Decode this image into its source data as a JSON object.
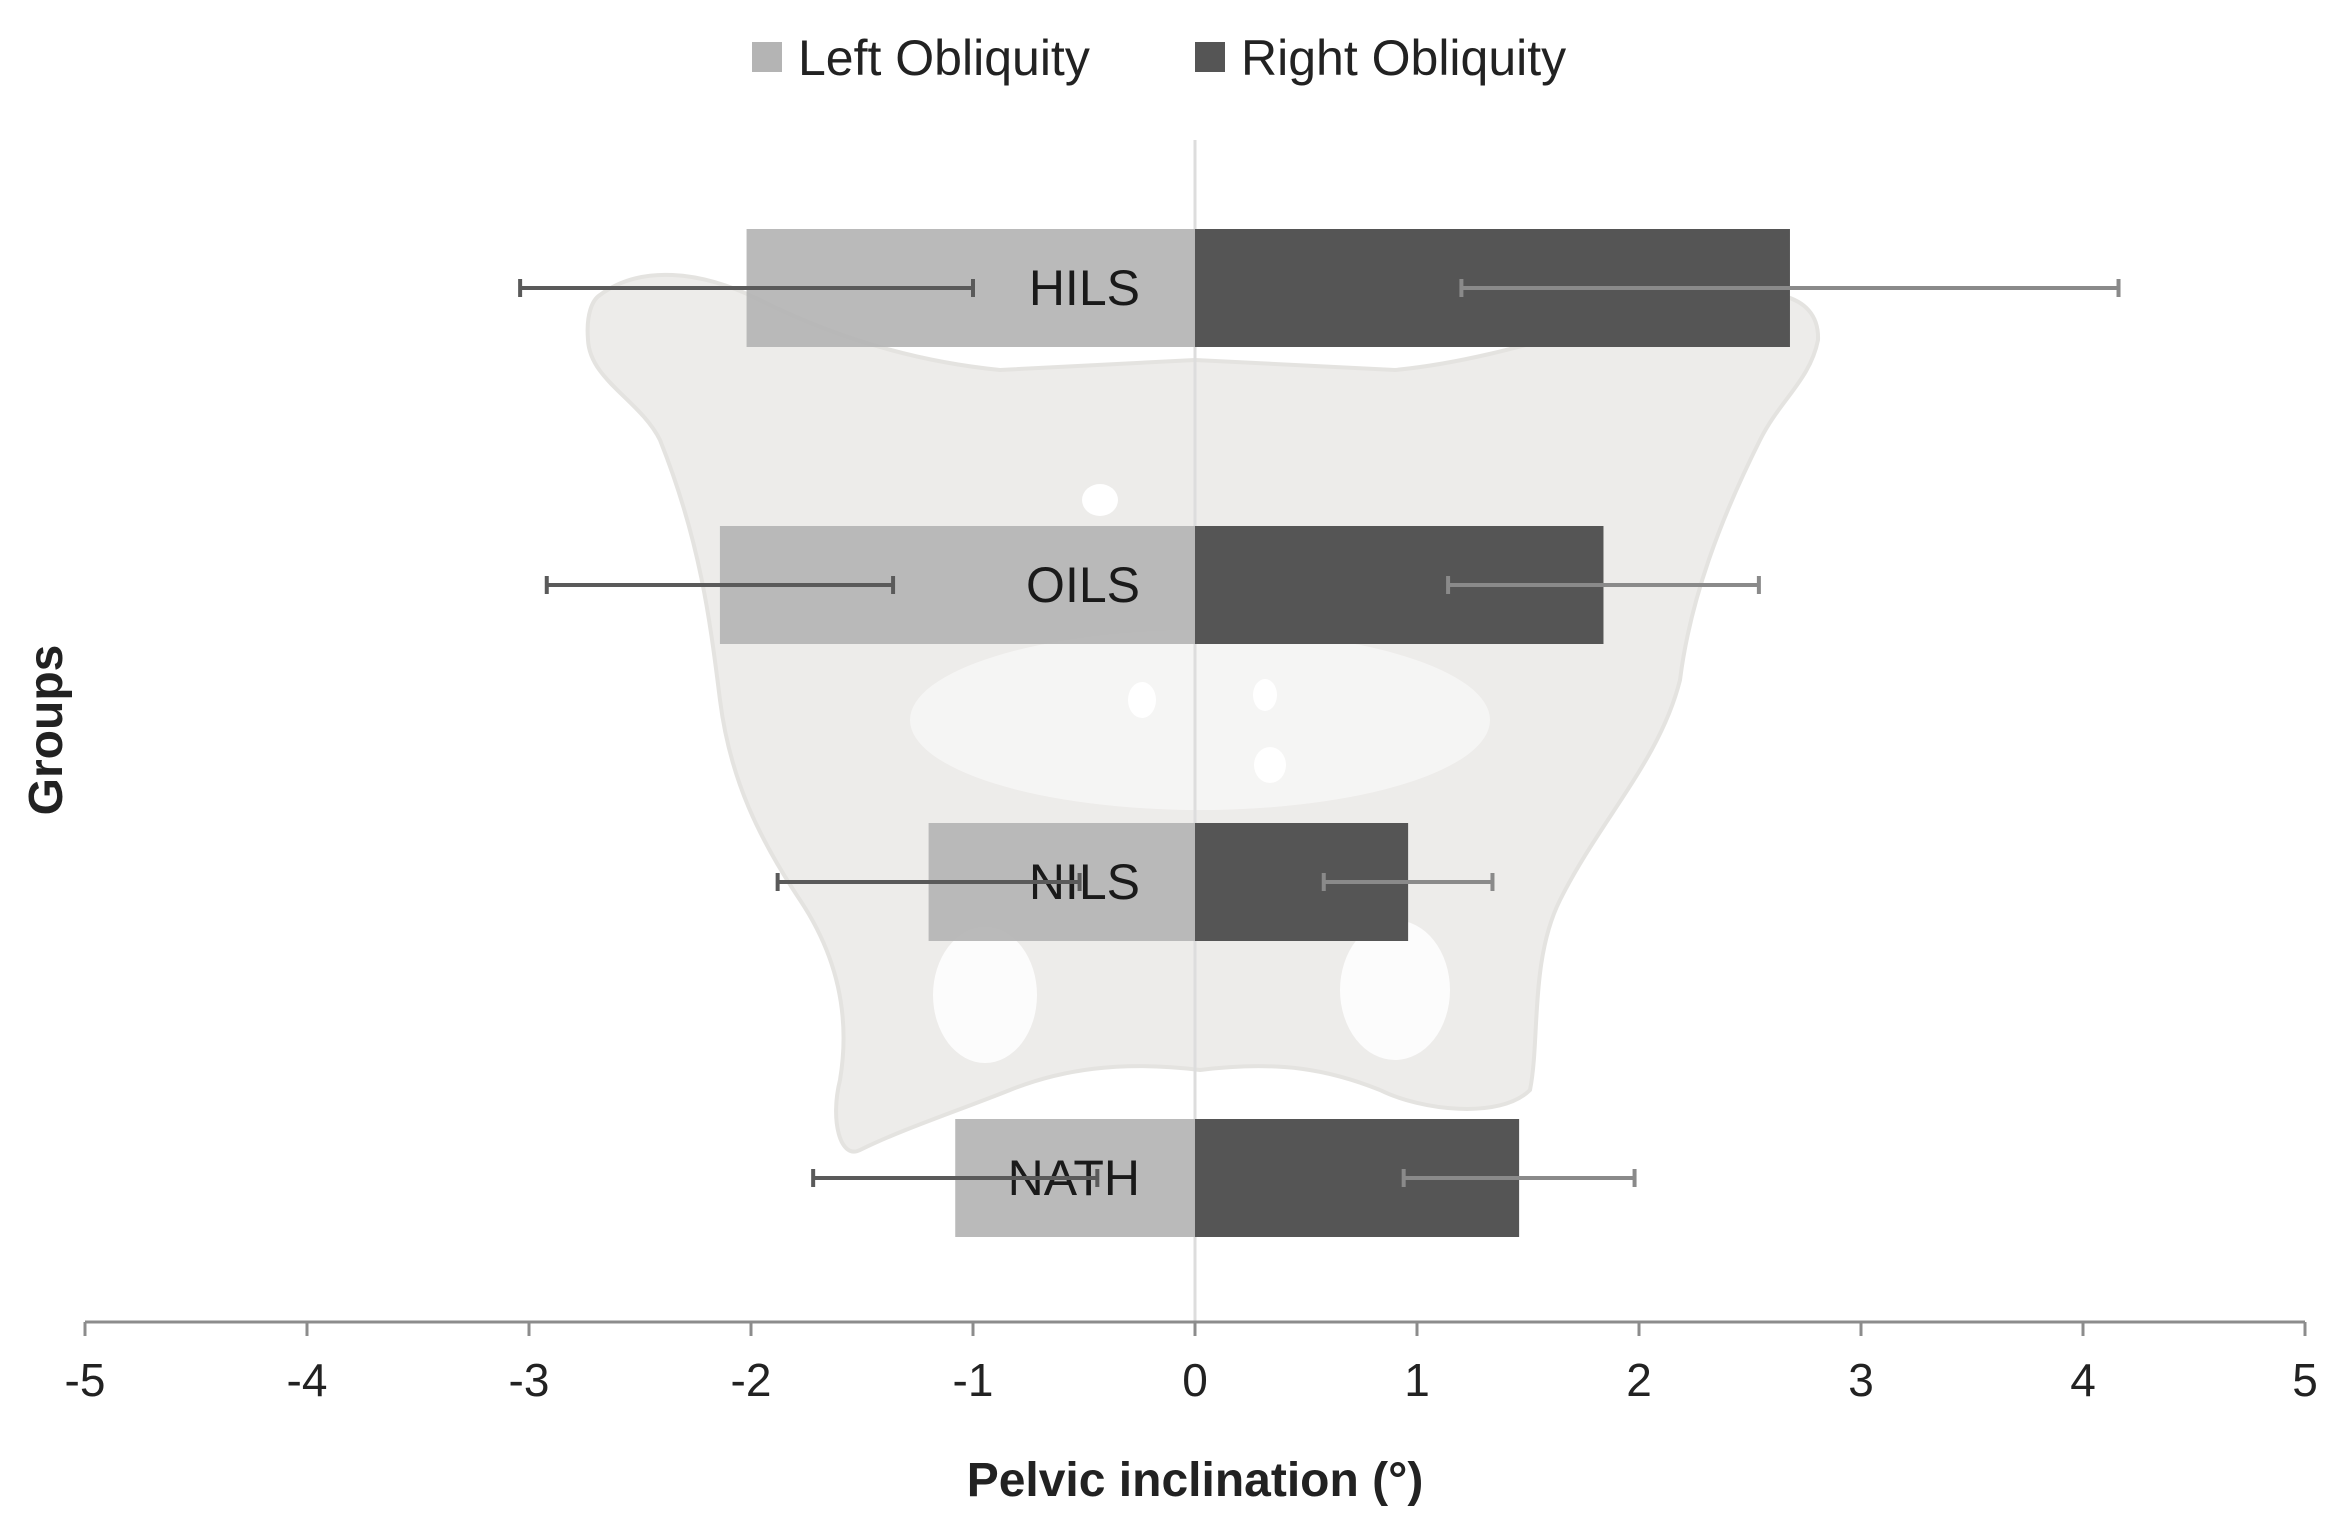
{
  "chart_data": {
    "type": "bar",
    "orientation": "horizontal",
    "stacked_diverging": true,
    "title": "",
    "xlabel": "Pelvic inclination (°)",
    "ylabel": "Groups",
    "xlim": [
      -5,
      5
    ],
    "xticks": [
      "-5",
      "-4",
      "-3",
      "-2",
      "-1",
      "0",
      "1",
      "2",
      "3",
      "4",
      "5"
    ],
    "categories": [
      "HILS",
      "OILS",
      "NILS",
      "NATH"
    ],
    "series": [
      {
        "name": "Left Obliquity",
        "color": "#b4b4b4",
        "values": [
          -2.02,
          -2.14,
          -1.2,
          -1.08
        ],
        "error_minus": [
          1.02,
          0.78,
          0.68,
          0.64
        ],
        "error_plus": [
          1.02,
          0.78,
          0.68,
          0.64
        ]
      },
      {
        "name": "Right Obliquity",
        "color": "#555555",
        "values": [
          2.68,
          1.84,
          0.96,
          1.46
        ],
        "error_minus": [
          1.48,
          0.7,
          0.38,
          0.52
        ],
        "error_plus": [
          1.48,
          0.7,
          0.38,
          0.52
        ]
      }
    ],
    "legend_position": "top-center",
    "grid": false,
    "background_image": "pelvis-bone"
  }
}
